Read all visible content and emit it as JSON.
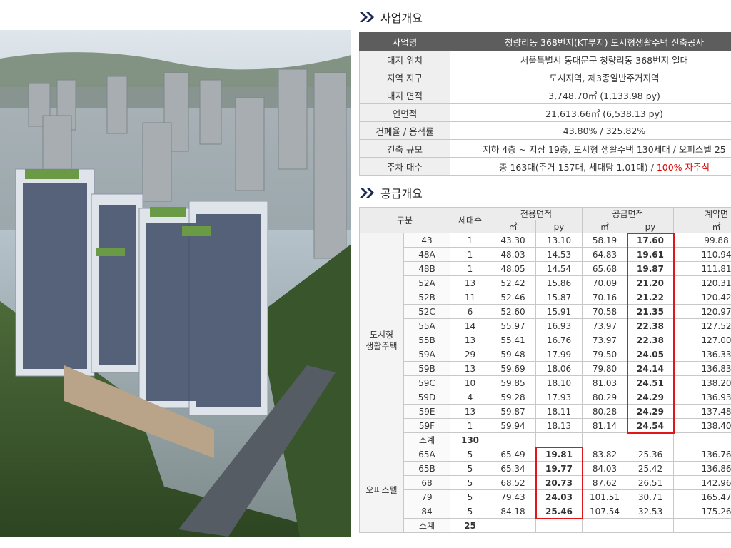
{
  "business": {
    "title": "사업개요",
    "rows": [
      {
        "label": "사업명",
        "value": "청량리동 368번지(KT부지) 도시형생활주택 신축공사"
      },
      {
        "label": "대지 위치",
        "value": "서울특별시 동대문구 청량리동 368번지 일대"
      },
      {
        "label": "지역 지구",
        "value": "도시지역, 제3종일반주거지역"
      },
      {
        "label": "대지 면적",
        "value": "3,748.70㎡ (1,133.98 py)"
      },
      {
        "label": "연면적",
        "value": "21,613.66㎡ (6,538.13 py)"
      },
      {
        "label": "건폐율 / 용적률",
        "value": "43.80% / 325.82%"
      },
      {
        "label": "건축 규모",
        "value": "지하 4층 ~ 지상 19층, 도시형 생활주택 130세대 / 오피스텔 25"
      },
      {
        "label": "주차 대수",
        "value": "총 163대(주거 157대, 세대당 1.01대) / ",
        "value_highlight": "100% 자주식"
      }
    ]
  },
  "supply": {
    "title": "공급개요",
    "header": {
      "division": "구분",
      "units": "세대수",
      "exclusive": "전용면적",
      "supply": "공급면적",
      "contract": "계약면"
    },
    "subheader": [
      "㎡",
      "py",
      "㎡",
      "py",
      "㎡"
    ],
    "groups": [
      {
        "label": "도시형\n생활주택",
        "rows": [
          [
            "43",
            "1",
            "43.30",
            "13.10",
            "58.19",
            "17.60",
            "99.88"
          ],
          [
            "48A",
            "1",
            "48.03",
            "14.53",
            "64.83",
            "19.61",
            "110.94"
          ],
          [
            "48B",
            "1",
            "48.05",
            "14.54",
            "65.68",
            "19.87",
            "111.81"
          ],
          [
            "52A",
            "13",
            "52.42",
            "15.86",
            "70.09",
            "21.20",
            "120.31"
          ],
          [
            "52B",
            "11",
            "52.46",
            "15.87",
            "70.16",
            "21.22",
            "120.42"
          ],
          [
            "52C",
            "6",
            "52.60",
            "15.91",
            "70.58",
            "21.35",
            "120.97"
          ],
          [
            "55A",
            "14",
            "55.97",
            "16.93",
            "73.97",
            "22.38",
            "127.52"
          ],
          [
            "55B",
            "13",
            "55.41",
            "16.76",
            "73.97",
            "22.38",
            "127.00"
          ],
          [
            "59A",
            "29",
            "59.48",
            "17.99",
            "79.50",
            "24.05",
            "136.33"
          ],
          [
            "59B",
            "13",
            "59.69",
            "18.06",
            "79.80",
            "24.14",
            "136.83"
          ],
          [
            "59C",
            "10",
            "59.85",
            "18.10",
            "81.03",
            "24.51",
            "138.20"
          ],
          [
            "59D",
            "4",
            "59.28",
            "17.93",
            "80.29",
            "24.29",
            "136.93"
          ],
          [
            "59E",
            "13",
            "59.87",
            "18.11",
            "80.28",
            "24.29",
            "137.48"
          ],
          [
            "59F",
            "1",
            "59.94",
            "18.13",
            "81.14",
            "24.54",
            "138.40"
          ]
        ],
        "subtotal": {
          "label": "소계",
          "units": "130"
        }
      },
      {
        "label": "오피스텔",
        "rows": [
          [
            "65A",
            "5",
            "65.49",
            "19.81",
            "83.82",
            "25.36",
            "136.76"
          ],
          [
            "65B",
            "5",
            "65.34",
            "19.77",
            "84.03",
            "25.42",
            "136.86"
          ],
          [
            "68",
            "5",
            "68.52",
            "20.73",
            "87.62",
            "26.51",
            "142.96"
          ],
          [
            "79",
            "5",
            "79.43",
            "24.03",
            "101.51",
            "30.71",
            "165.47"
          ],
          [
            "84",
            "5",
            "84.18",
            "25.46",
            "107.54",
            "32.53",
            "175.26"
          ]
        ],
        "subtotal": {
          "label": "소계",
          "units": "25"
        }
      }
    ]
  }
}
